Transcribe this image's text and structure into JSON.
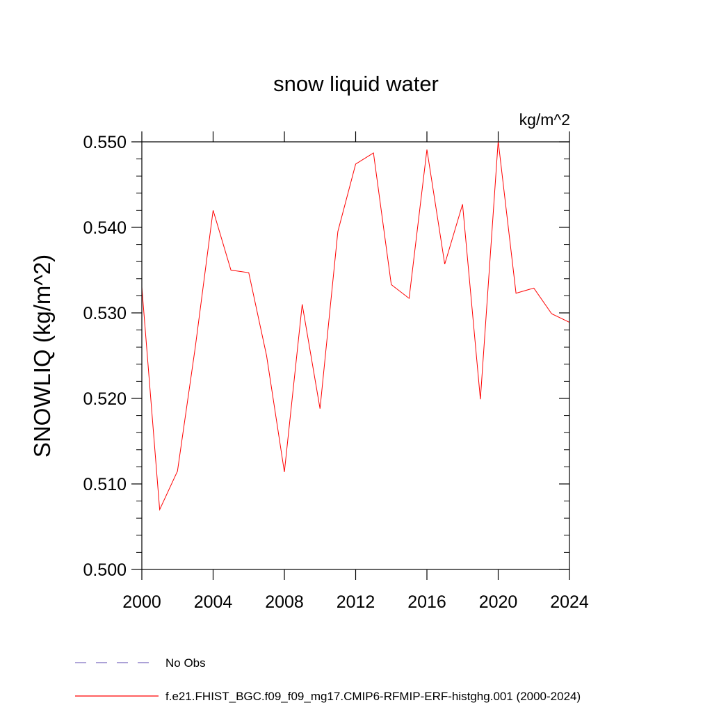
{
  "chart_data": {
    "type": "line",
    "title": "snow liquid water",
    "units": "kg/m^2",
    "xlabel": "",
    "ylabel": "SNOWLIQ  (kg/m^2)",
    "xlim": [
      2000,
      2024
    ],
    "ylim": [
      0.5,
      0.55
    ],
    "x_ticks": [
      2000,
      2004,
      2008,
      2012,
      2016,
      2020,
      2024
    ],
    "x_tick_labels": [
      "2000",
      "2004",
      "2008",
      "2012",
      "2016",
      "2020",
      "2024"
    ],
    "y_ticks": [
      0.5,
      0.51,
      0.52,
      0.53,
      0.54,
      0.55
    ],
    "y_tick_labels": [
      "0.500",
      "0.510",
      "0.520",
      "0.530",
      "0.540",
      "0.550"
    ],
    "grid": false,
    "series": [
      {
        "name": "f.e21.FHIST_BGC.f09_f09_mg17.CMIP6-RFMIP-ERF-histghg.001 (2000-2024)",
        "color": "#ff0000",
        "style": "solid",
        "x": [
          2000,
          2001,
          2002,
          2003,
          2004,
          2005,
          2006,
          2007,
          2008,
          2009,
          2010,
          2011,
          2012,
          2013,
          2014,
          2015,
          2016,
          2017,
          2018,
          2019,
          2020,
          2021,
          2022,
          2023,
          2024
        ],
        "values": [
          0.533,
          0.507,
          0.5115,
          0.526,
          0.542,
          0.535,
          0.5347,
          0.525,
          0.5114,
          0.531,
          0.5188,
          0.5395,
          0.5474,
          0.5487,
          0.5333,
          0.5317,
          0.5491,
          0.5357,
          0.5427,
          0.5199,
          0.5501,
          0.5323,
          0.5329,
          0.5299,
          0.5289
        ]
      }
    ],
    "legend": [
      {
        "label": "No Obs",
        "color": "#7b6bbf",
        "style": "dashed"
      },
      {
        "label": "f.e21.FHIST_BGC.f09_f09_mg17.CMIP6-RFMIP-ERF-histghg.001 (2000-2024)",
        "color": "#ff0000",
        "style": "solid"
      }
    ]
  }
}
